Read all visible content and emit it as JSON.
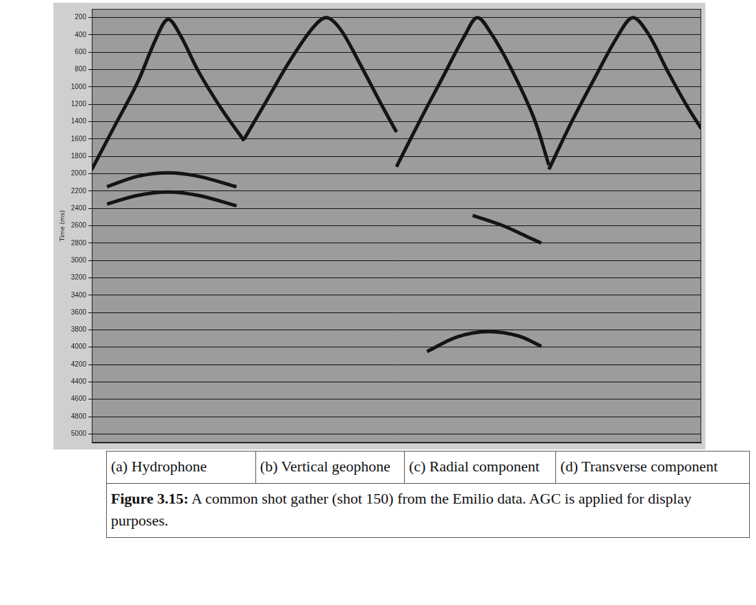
{
  "chart_data": {
    "type": "line",
    "y_label": "Time (ms)",
    "ylim": [
      100,
      5100
    ],
    "yticks": [
      200,
      400,
      600,
      800,
      1000,
      1200,
      1400,
      1600,
      1800,
      2000,
      2200,
      2400,
      2600,
      2800,
      3000,
      3200,
      3400,
      3600,
      3800,
      4000,
      4200,
      4400,
      4600,
      4800,
      5000
    ],
    "xlim": [
      0,
      4
    ],
    "tick_labels": "y",
    "grid": true,
    "series": [
      {
        "color": "#141414",
        "line_style": "solid",
        "marker": "none",
        "x": [
          0,
          0.15,
          0.3,
          0.42,
          0.5,
          0.58,
          0.7,
          0.85,
          1.0
        ],
        "values": [
          1950,
          1450,
          950,
          450,
          220,
          400,
          820,
          1250,
          1620
        ]
      },
      {
        "color": "#141414",
        "line_style": "solid",
        "marker": "none",
        "x": [
          1.0,
          1.15,
          1.3,
          1.45,
          1.54,
          1.63,
          1.75,
          1.9,
          2.0
        ],
        "values": [
          1600,
          1150,
          700,
          320,
          200,
          330,
          700,
          1200,
          1520
        ]
      },
      {
        "color": "#141414",
        "line_style": "solid",
        "marker": "none",
        "x": [
          2.0,
          2.15,
          2.3,
          2.45,
          2.53,
          2.62,
          2.75,
          2.9,
          3.0
        ],
        "values": [
          1920,
          1400,
          900,
          400,
          200,
          380,
          780,
          1350,
          1900
        ]
      },
      {
        "color": "#141414",
        "line_style": "solid",
        "marker": "none",
        "x": [
          3.0,
          3.15,
          3.3,
          3.45,
          3.55,
          3.65,
          3.78,
          3.9,
          4.0
        ],
        "values": [
          1950,
          1400,
          900,
          420,
          200,
          380,
          820,
          1200,
          1480
        ]
      },
      {
        "color": "#141414",
        "line_style": "solid",
        "marker": "none",
        "x": [
          0.1,
          0.3,
          0.5,
          0.7,
          0.95
        ],
        "values": [
          2150,
          2030,
          1990,
          2030,
          2150
        ]
      },
      {
        "color": "#141414",
        "line_style": "solid",
        "marker": "none",
        "x": [
          0.1,
          0.3,
          0.5,
          0.7,
          0.95
        ],
        "values": [
          2350,
          2250,
          2210,
          2250,
          2370
        ]
      },
      {
        "color": "#141414",
        "line_style": "solid",
        "marker": "none",
        "x": [
          2.5,
          2.7,
          2.85,
          2.95
        ],
        "values": [
          2480,
          2600,
          2720,
          2800
        ]
      },
      {
        "color": "#141414",
        "line_style": "solid",
        "marker": "none",
        "x": [
          2.2,
          2.4,
          2.6,
          2.8,
          2.95
        ],
        "values": [
          4050,
          3880,
          3820,
          3870,
          3990
        ]
      }
    ]
  },
  "panels": [
    "(a) Hydrophone",
    "(b) Vertical geophone",
    "(c) Radial component",
    "(d) Transverse component"
  ],
  "caption": {
    "label": "Figure 3.15:",
    "text": "A common shot gather (shot 150) from the Emilio data. AGC is applied for display purposes."
  }
}
